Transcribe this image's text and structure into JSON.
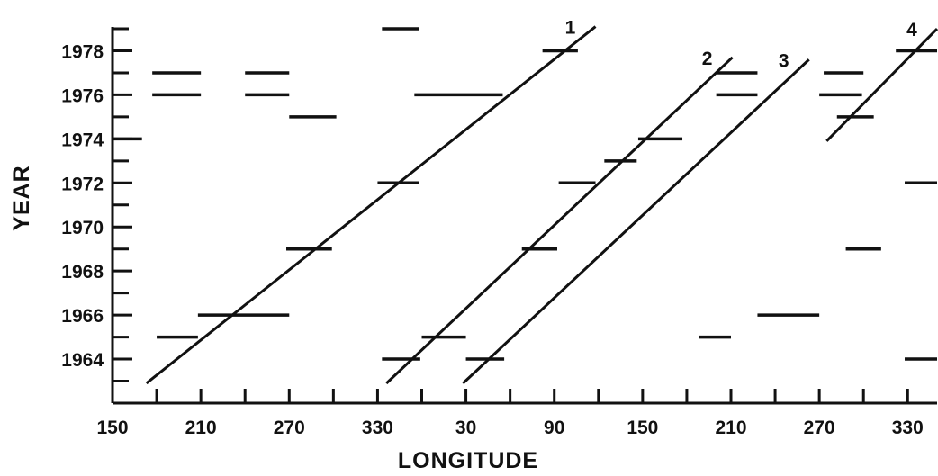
{
  "chart_data": {
    "type": "scatter",
    "title": "",
    "xlabel": "LONGITUDE",
    "ylabel": "YEAR",
    "x_tick_labels": [
      "150",
      "210",
      "270",
      "330",
      "30",
      "90",
      "150",
      "210",
      "270",
      "330"
    ],
    "x_tick_values": [
      150,
      210,
      270,
      330,
      390,
      450,
      510,
      570,
      630,
      690
    ],
    "y_tick_labels": [
      "1964",
      "1966",
      "1968",
      "1970",
      "1972",
      "1974",
      "1976",
      "1978"
    ],
    "y_tick_values": [
      1964,
      1966,
      1968,
      1970,
      1972,
      1974,
      1976,
      1978
    ],
    "xlim": [
      150,
      710
    ],
    "ylim": [
      1962,
      1979
    ],
    "grid": false,
    "segments_note": "Longitude axis runs continuously past 360 (390 = 30°E, wrapped).",
    "segments": [
      {
        "year": 1979,
        "x_start": 333,
        "x_end": 358
      },
      {
        "year": 1978,
        "x_start": 442,
        "x_end": 466
      },
      {
        "year": 1978,
        "x_start": 682,
        "x_end": 710
      },
      {
        "year": 1977,
        "x_start": 177,
        "x_end": 210
      },
      {
        "year": 1977,
        "x_start": 240,
        "x_end": 270
      },
      {
        "year": 1977,
        "x_start": 560,
        "x_end": 588
      },
      {
        "year": 1977,
        "x_start": 633,
        "x_end": 660
      },
      {
        "year": 1976,
        "x_start": 177,
        "x_end": 210
      },
      {
        "year": 1976,
        "x_start": 240,
        "x_end": 270
      },
      {
        "year": 1976,
        "x_start": 355,
        "x_end": 415
      },
      {
        "year": 1976,
        "x_start": 560,
        "x_end": 588
      },
      {
        "year": 1976,
        "x_start": 630,
        "x_end": 659
      },
      {
        "year": 1975,
        "x_start": 270,
        "x_end": 302
      },
      {
        "year": 1975,
        "x_start": 642,
        "x_end": 667
      },
      {
        "year": 1974,
        "x_start": 150,
        "x_end": 170
      },
      {
        "year": 1974,
        "x_start": 507,
        "x_end": 537
      },
      {
        "year": 1973,
        "x_start": 484,
        "x_end": 506
      },
      {
        "year": 1972,
        "x_start": 330,
        "x_end": 358
      },
      {
        "year": 1972,
        "x_start": 453,
        "x_end": 478
      },
      {
        "year": 1972,
        "x_start": 688,
        "x_end": 710
      },
      {
        "year": 1969,
        "x_start": 268,
        "x_end": 299
      },
      {
        "year": 1969,
        "x_start": 428,
        "x_end": 452
      },
      {
        "year": 1969,
        "x_start": 648,
        "x_end": 672
      },
      {
        "year": 1966,
        "x_start": 208,
        "x_end": 270
      },
      {
        "year": 1966,
        "x_start": 588,
        "x_end": 630
      },
      {
        "year": 1965,
        "x_start": 180,
        "x_end": 208
      },
      {
        "year": 1965,
        "x_start": 360,
        "x_end": 390
      },
      {
        "year": 1965,
        "x_start": 548,
        "x_end": 570
      },
      {
        "year": 1964,
        "x_start": 333,
        "x_end": 359
      },
      {
        "year": 1964,
        "x_start": 390,
        "x_end": 416
      },
      {
        "year": 1964,
        "x_start": 688,
        "x_end": 710
      }
    ],
    "drift_lines": [
      {
        "label": "1",
        "x_start": 173,
        "y_start": 1962.9,
        "x_end": 478,
        "y_end": 1979.1
      },
      {
        "label": "2",
        "x_start": 336,
        "y_start": 1962.9,
        "x_end": 571,
        "y_end": 1977.7
      },
      {
        "label": "3",
        "x_start": 388,
        "y_start": 1962.9,
        "x_end": 623,
        "y_end": 1977.6
      },
      {
        "label": "4",
        "x_start": 635,
        "y_start": 1973.9,
        "x_end": 710,
        "y_end": 1979.0
      }
    ]
  }
}
